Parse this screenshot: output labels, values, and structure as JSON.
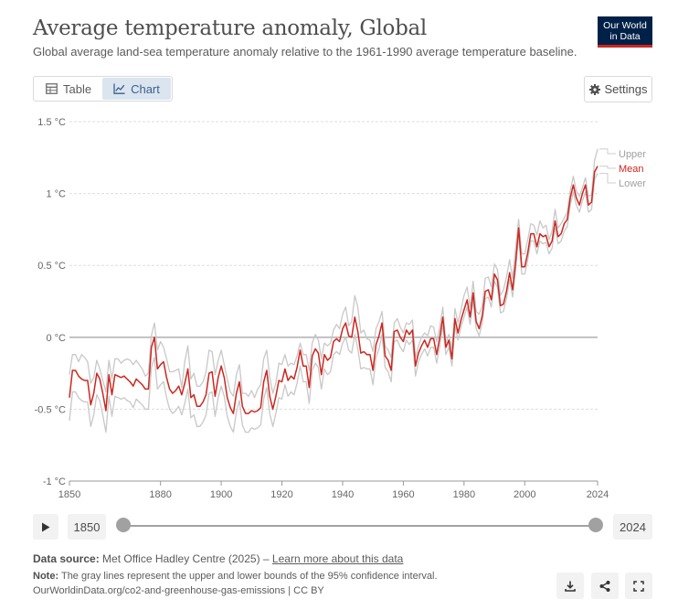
{
  "header": {
    "title": "Average temperature anomaly, Global",
    "subtitle": "Global average land-sea temperature anomaly relative to the 1961-1990 average temperature baseline."
  },
  "logo": {
    "line1": "Our World",
    "line2": "in Data",
    "bg_color": "#002147",
    "accent_color": "#ce261e"
  },
  "tabs": [
    {
      "label": "Table",
      "icon": "table-icon",
      "active": false
    },
    {
      "label": "Chart",
      "icon": "line-chart-icon",
      "active": true
    }
  ],
  "settings": {
    "label": "Settings",
    "icon": "gear-icon"
  },
  "timeline": {
    "start_label": "1850",
    "end_label": "2024",
    "play_icon": "play-icon"
  },
  "footer": {
    "source_label": "Data source:",
    "source_text": "Met Office Hadley Centre (2025) –",
    "source_link": "Learn more about this data",
    "note_label": "Note:",
    "note_text": "The gray lines represent the upper and lower bounds of the 95% confidence interval.",
    "citation": "OurWorldinData.org/co2-and-greenhouse-gas-emissions | CC BY",
    "buttons": [
      "download-icon",
      "share-icon",
      "fullscreen-icon"
    ]
  },
  "chart_data": {
    "type": "line",
    "x": [
      1850,
      1851,
      1852,
      1853,
      1854,
      1855,
      1856,
      1857,
      1858,
      1859,
      1860,
      1861,
      1862,
      1863,
      1864,
      1865,
      1866,
      1867,
      1868,
      1869,
      1870,
      1871,
      1872,
      1873,
      1874,
      1875,
      1876,
      1877,
      1878,
      1879,
      1880,
      1881,
      1882,
      1883,
      1884,
      1885,
      1886,
      1887,
      1888,
      1889,
      1890,
      1891,
      1892,
      1893,
      1894,
      1895,
      1896,
      1897,
      1898,
      1899,
      1900,
      1901,
      1902,
      1903,
      1904,
      1905,
      1906,
      1907,
      1908,
      1909,
      1910,
      1911,
      1912,
      1913,
      1914,
      1915,
      1916,
      1917,
      1918,
      1919,
      1920,
      1921,
      1922,
      1923,
      1924,
      1925,
      1926,
      1927,
      1928,
      1929,
      1930,
      1931,
      1932,
      1933,
      1934,
      1935,
      1936,
      1937,
      1938,
      1939,
      1940,
      1941,
      1942,
      1943,
      1944,
      1945,
      1946,
      1947,
      1948,
      1949,
      1950,
      1951,
      1952,
      1953,
      1954,
      1955,
      1956,
      1957,
      1958,
      1959,
      1960,
      1961,
      1962,
      1963,
      1964,
      1965,
      1966,
      1967,
      1968,
      1969,
      1970,
      1971,
      1972,
      1973,
      1974,
      1975,
      1976,
      1977,
      1978,
      1979,
      1980,
      1981,
      1982,
      1983,
      1984,
      1985,
      1986,
      1987,
      1988,
      1989,
      1990,
      1991,
      1992,
      1993,
      1994,
      1995,
      1996,
      1997,
      1998,
      1999,
      2000,
      2001,
      2002,
      2003,
      2004,
      2005,
      2006,
      2007,
      2008,
      2009,
      2010,
      2011,
      2012,
      2013,
      2014,
      2015,
      2016,
      2017,
      2018,
      2019,
      2020,
      2021,
      2022,
      2023,
      2024
    ],
    "series": [
      {
        "name": "Upper",
        "color": "#c8c8c8",
        "values": [
          -0.26,
          -0.12,
          -0.12,
          -0.17,
          -0.12,
          -0.14,
          -0.17,
          -0.32,
          -0.28,
          -0.16,
          -0.22,
          -0.3,
          -0.38,
          -0.16,
          -0.29,
          -0.15,
          -0.15,
          -0.18,
          -0.16,
          -0.15,
          -0.16,
          -0.19,
          -0.16,
          -0.19,
          -0.22,
          -0.27,
          -0.25,
          0.01,
          0.1,
          -0.09,
          -0.03,
          -0.07,
          -0.15,
          -0.24,
          -0.24,
          -0.23,
          -0.22,
          -0.35,
          -0.17,
          -0.06,
          -0.29,
          -0.25,
          -0.34,
          -0.34,
          -0.31,
          -0.24,
          -0.09,
          -0.1,
          -0.26,
          -0.16,
          -0.09,
          -0.19,
          -0.29,
          -0.38,
          -0.41,
          -0.26,
          -0.19,
          -0.39,
          -0.39,
          -0.41,
          -0.37,
          -0.42,
          -0.36,
          -0.33,
          -0.15,
          -0.09,
          -0.28,
          -0.39,
          -0.32,
          -0.18,
          -0.19,
          -0.12,
          -0.2,
          -0.18,
          -0.19,
          -0.13,
          -0.04,
          -0.12,
          -0.12,
          -0.23,
          -0.04,
          0.02,
          -0.02,
          -0.15,
          -0.04,
          -0.06,
          -0.04,
          0.05,
          0.09,
          0.06,
          0.16,
          0.21,
          0.08,
          0.11,
          0.29,
          0.21,
          0.03,
          0.05,
          -0.01,
          -0.02,
          -0.1,
          0.06,
          0.11,
          0.18,
          -0.06,
          -0.09,
          -0.14,
          0.1,
          0.13,
          0.07,
          0.03,
          0.1,
          0.09,
          0.12,
          -0.14,
          -0.06,
          0.0,
          0.03,
          0.01,
          0.08,
          0.07,
          -0.03,
          0.07,
          0.21,
          -0.04,
          0.02,
          -0.08,
          0.2,
          0.1,
          0.19,
          0.29,
          0.35,
          0.21,
          0.39,
          0.18,
          0.16,
          0.22,
          0.41,
          0.42,
          0.35,
          0.51,
          0.47,
          0.29,
          0.33,
          0.42,
          0.54,
          0.41,
          0.62,
          0.82,
          0.58,
          0.58,
          0.68,
          0.79,
          0.78,
          0.71,
          0.81,
          0.76,
          0.78,
          0.68,
          0.74,
          0.89,
          0.76,
          0.79,
          0.83,
          0.87,
          1.02,
          1.12,
          1.02,
          0.98,
          1.04,
          1.11,
          0.98,
          0.99,
          1.23,
          1.31
        ]
      },
      {
        "name": "Mean",
        "color": "#ce261e",
        "values": [
          -0.42,
          -0.23,
          -0.23,
          -0.27,
          -0.29,
          -0.3,
          -0.3,
          -0.47,
          -0.39,
          -0.25,
          -0.29,
          -0.39,
          -0.51,
          -0.26,
          -0.4,
          -0.26,
          -0.27,
          -0.28,
          -0.27,
          -0.29,
          -0.31,
          -0.34,
          -0.29,
          -0.31,
          -0.33,
          -0.36,
          -0.36,
          -0.07,
          0.0,
          -0.22,
          -0.19,
          -0.17,
          -0.28,
          -0.36,
          -0.39,
          -0.37,
          -0.34,
          -0.4,
          -0.32,
          -0.22,
          -0.42,
          -0.4,
          -0.48,
          -0.48,
          -0.45,
          -0.4,
          -0.25,
          -0.24,
          -0.41,
          -0.28,
          -0.2,
          -0.28,
          -0.42,
          -0.49,
          -0.53,
          -0.39,
          -0.31,
          -0.48,
          -0.53,
          -0.53,
          -0.51,
          -0.52,
          -0.51,
          -0.49,
          -0.31,
          -0.23,
          -0.41,
          -0.5,
          -0.41,
          -0.3,
          -0.31,
          -0.22,
          -0.3,
          -0.27,
          -0.29,
          -0.21,
          -0.09,
          -0.2,
          -0.2,
          -0.35,
          -0.13,
          -0.08,
          -0.11,
          -0.26,
          -0.12,
          -0.16,
          -0.14,
          -0.03,
          -0.01,
          -0.03,
          0.06,
          0.1,
          0.01,
          0.0,
          0.14,
          0.04,
          -0.11,
          -0.1,
          -0.12,
          -0.12,
          -0.23,
          -0.05,
          0.01,
          0.1,
          -0.13,
          -0.16,
          -0.23,
          0.04,
          0.05,
          0.0,
          -0.03,
          0.05,
          0.02,
          0.05,
          -0.2,
          -0.11,
          -0.06,
          -0.02,
          -0.07,
          -0.01,
          -0.01,
          -0.12,
          0.0,
          0.14,
          -0.07,
          -0.02,
          -0.15,
          0.13,
          0.03,
          0.12,
          0.19,
          0.26,
          0.14,
          0.31,
          0.11,
          0.06,
          0.15,
          0.32,
          0.33,
          0.26,
          0.44,
          0.4,
          0.22,
          0.23,
          0.32,
          0.45,
          0.33,
          0.52,
          0.76,
          0.49,
          0.49,
          0.59,
          0.72,
          0.72,
          0.63,
          0.72,
          0.7,
          0.71,
          0.63,
          0.67,
          0.81,
          0.7,
          0.72,
          0.79,
          0.82,
          0.97,
          1.06,
          0.97,
          0.92,
          1.0,
          1.06,
          0.92,
          0.94,
          1.15,
          1.19
        ]
      },
      {
        "name": "Lower",
        "color": "#c8c8c8",
        "values": [
          -0.58,
          -0.38,
          -0.38,
          -0.42,
          -0.44,
          -0.45,
          -0.45,
          -0.62,
          -0.54,
          -0.4,
          -0.44,
          -0.54,
          -0.66,
          -0.41,
          -0.55,
          -0.41,
          -0.42,
          -0.43,
          -0.42,
          -0.44,
          -0.45,
          -0.49,
          -0.43,
          -0.45,
          -0.47,
          -0.5,
          -0.5,
          -0.21,
          -0.14,
          -0.36,
          -0.33,
          -0.31,
          -0.42,
          -0.5,
          -0.53,
          -0.51,
          -0.48,
          -0.54,
          -0.46,
          -0.36,
          -0.56,
          -0.54,
          -0.62,
          -0.62,
          -0.59,
          -0.54,
          -0.39,
          -0.38,
          -0.55,
          -0.42,
          -0.34,
          -0.41,
          -0.55,
          -0.62,
          -0.66,
          -0.52,
          -0.44,
          -0.61,
          -0.66,
          -0.66,
          -0.63,
          -0.64,
          -0.63,
          -0.61,
          -0.43,
          -0.35,
          -0.53,
          -0.62,
          -0.53,
          -0.42,
          -0.43,
          -0.33,
          -0.41,
          -0.38,
          -0.4,
          -0.32,
          -0.2,
          -0.31,
          -0.31,
          -0.46,
          -0.23,
          -0.18,
          -0.21,
          -0.36,
          -0.22,
          -0.26,
          -0.24,
          -0.12,
          -0.1,
          -0.12,
          -0.04,
          0.0,
          -0.09,
          -0.11,
          0.02,
          -0.08,
          -0.22,
          -0.21,
          -0.22,
          -0.22,
          -0.33,
          -0.14,
          -0.08,
          0.02,
          -0.21,
          -0.24,
          -0.31,
          -0.03,
          -0.02,
          -0.07,
          -0.1,
          -0.02,
          -0.05,
          -0.02,
          -0.27,
          -0.17,
          -0.12,
          -0.08,
          -0.13,
          -0.07,
          -0.07,
          -0.18,
          -0.06,
          0.08,
          -0.12,
          -0.07,
          -0.2,
          0.08,
          -0.02,
          0.07,
          0.14,
          0.21,
          0.09,
          0.26,
          0.06,
          0.01,
          0.1,
          0.27,
          0.28,
          0.21,
          0.39,
          0.35,
          0.17,
          0.18,
          0.27,
          0.4,
          0.28,
          0.47,
          0.71,
          0.44,
          0.44,
          0.54,
          0.67,
          0.67,
          0.58,
          0.67,
          0.65,
          0.66,
          0.58,
          0.62,
          0.76,
          0.65,
          0.67,
          0.74,
          0.77,
          0.92,
          1.01,
          0.92,
          0.87,
          0.95,
          1.01,
          0.87,
          0.89,
          1.1,
          1.14
        ]
      }
    ],
    "yticks": [
      -1,
      -0.5,
      0,
      0.5,
      1,
      1.5
    ],
    "ytick_labels": [
      "-1 °C",
      "-0.5 °C",
      "0 °C",
      "0.5 °C",
      "1 °C",
      "1.5 °C"
    ],
    "xticks": [
      1850,
      1880,
      1900,
      1920,
      1940,
      1960,
      1980,
      2000,
      2024
    ],
    "xtick_labels": [
      "1850",
      "1880",
      "1900",
      "1920",
      "1940",
      "1960",
      "1980",
      "2000",
      "2024"
    ],
    "xlim": [
      1850,
      2024
    ],
    "ylim": [
      -1,
      1.5
    ],
    "grid": true,
    "zero_line_color": "#a8a8a8",
    "grid_color": "#dddddd",
    "tick_color": "#666666",
    "legend_placement": "right-of-line-ends",
    "legend_colors": {
      "Upper": "#a1a1a1",
      "Mean": "#ce261e",
      "Lower": "#a1a1a1"
    }
  }
}
